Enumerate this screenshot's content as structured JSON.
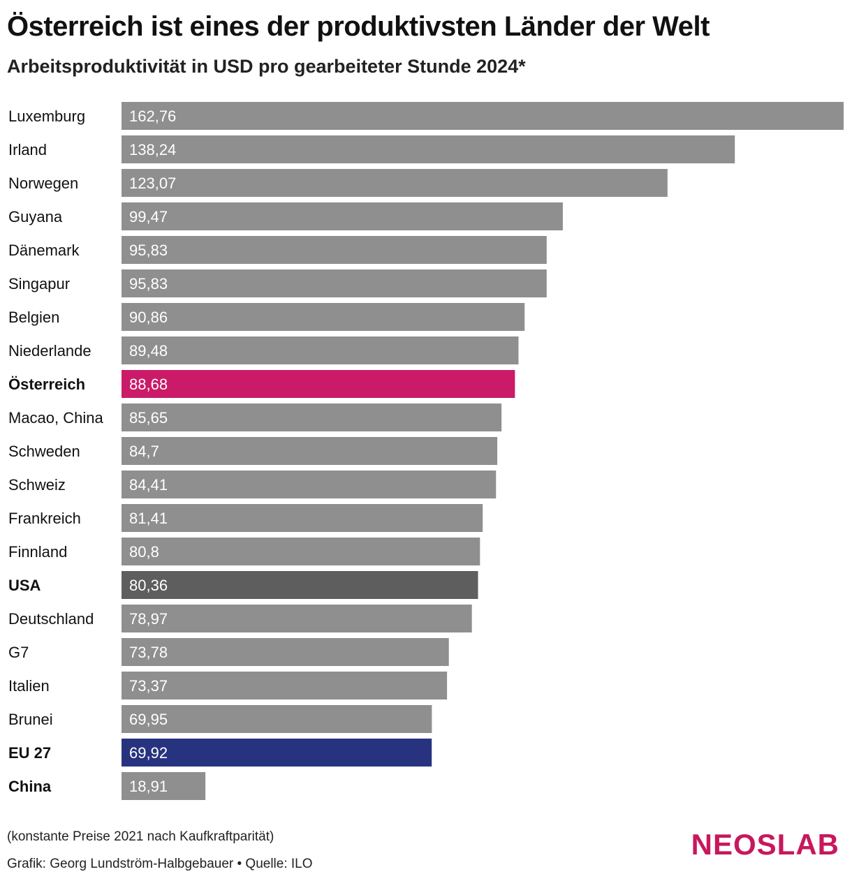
{
  "title": "Österreich ist eines der produktivsten Länder der Welt",
  "subtitle": "Arbeitsproduktivität in USD pro gearbeiteter Stunde 2024*",
  "chart_data": {
    "type": "bar",
    "orientation": "horizontal",
    "title": "Österreich ist eines der produktivsten Länder der Welt",
    "subtitle": "Arbeitsproduktivität in USD pro gearbeiteter Stunde 2024*",
    "xlim": [
      0,
      162.76
    ],
    "grid": false,
    "categories": [
      "Luxemburg",
      "Irland",
      "Norwegen",
      "Guyana",
      "Dänemark",
      "Singapur",
      "Belgien",
      "Niederlande",
      "Österreich",
      "Macao, China",
      "Schweden",
      "Schweiz",
      "Frankreich",
      "Finnland",
      "USA",
      "Deutschland",
      "G7",
      "Italien",
      "Brunei",
      "EU 27",
      "China"
    ],
    "values": [
      162.76,
      138.24,
      123.07,
      99.47,
      95.83,
      95.83,
      90.86,
      89.48,
      88.68,
      85.65,
      84.7,
      84.41,
      81.41,
      80.8,
      80.36,
      78.97,
      73.78,
      73.37,
      69.95,
      69.92,
      18.91
    ],
    "value_labels": [
      "162,76",
      "138,24",
      "123,07",
      "99,47",
      "95,83",
      "95,83",
      "90,86",
      "89,48",
      "88,68",
      "85,65",
      "84,7",
      "84,41",
      "81,41",
      "80,8",
      "80,36",
      "78,97",
      "73,78",
      "73,37",
      "69,95",
      "69,92",
      "18,91"
    ],
    "bold_categories": [
      "Österreich",
      "USA",
      "EU 27",
      "China"
    ],
    "colors": {
      "default": "#8f8f8f",
      "Österreich": "#cb1a67",
      "USA": "#5e5e5e",
      "EU 27": "#283380"
    }
  },
  "footer": {
    "note": "(konstante Preise 2021 nach Kaufkraftparität)",
    "credit": "Grafik: Georg Lundström-Halbgebauer • Quelle: ILO"
  },
  "logo": {
    "part1": "NEOS",
    "part2": "LAB"
  }
}
